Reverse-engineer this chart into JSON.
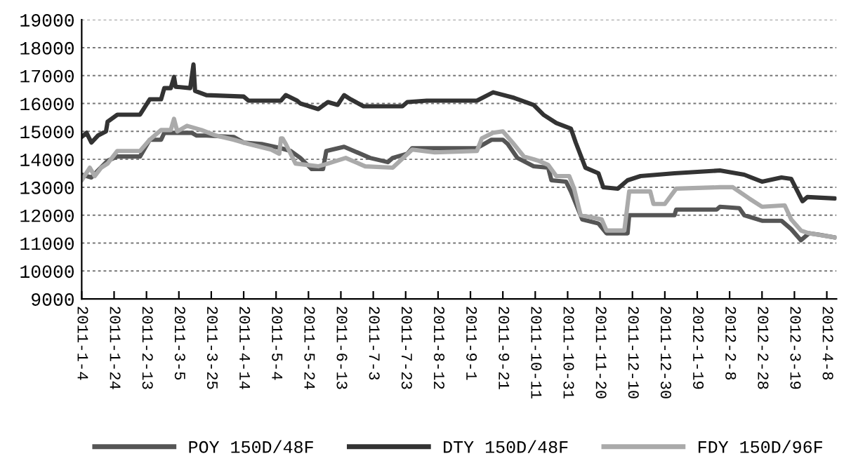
{
  "chart_data": {
    "type": "line",
    "ylim": [
      9000,
      19000
    ],
    "yticks": [
      9000,
      10000,
      11000,
      12000,
      13000,
      14000,
      15000,
      16000,
      17000,
      18000,
      19000
    ],
    "xlim": [
      "2011-01-04",
      "2012-04-14"
    ],
    "xticks": [
      {
        "value": "2011-01-04",
        "label": "2011-1-4"
      },
      {
        "value": "2011-01-24",
        "label": "2011-1-24"
      },
      {
        "value": "2011-02-13",
        "label": "2011-2-13"
      },
      {
        "value": "2011-03-05",
        "label": "2011-3-5"
      },
      {
        "value": "2011-03-25",
        "label": "2011-3-25"
      },
      {
        "value": "2011-04-14",
        "label": "2011-4-14"
      },
      {
        "value": "2011-05-04",
        "label": "2011-5-4"
      },
      {
        "value": "2011-05-24",
        "label": "2011-5-24"
      },
      {
        "value": "2011-06-13",
        "label": "2011-6-13"
      },
      {
        "value": "2011-07-03",
        "label": "2011-7-3"
      },
      {
        "value": "2011-07-23",
        "label": "2011-7-23"
      },
      {
        "value": "2011-08-12",
        "label": "2011-8-12"
      },
      {
        "value": "2011-09-01",
        "label": "2011-9-1"
      },
      {
        "value": "2011-09-21",
        "label": "2011-9-21"
      },
      {
        "value": "2011-10-11",
        "label": "2011-10-11"
      },
      {
        "value": "2011-10-31",
        "label": "2011-10-31"
      },
      {
        "value": "2011-11-20",
        "label": "2011-11-20"
      },
      {
        "value": "2011-12-10",
        "label": "2011-12-10"
      },
      {
        "value": "2011-12-30",
        "label": "2011-12-30"
      },
      {
        "value": "2012-01-19",
        "label": "2012-1-19"
      },
      {
        "value": "2012-02-08",
        "label": "2012-2-8"
      },
      {
        "value": "2012-02-28",
        "label": "2012-2-28"
      },
      {
        "value": "2012-03-19",
        "label": "2012-3-19"
      },
      {
        "value": "2012-04-08",
        "label": "2012-4-8"
      }
    ],
    "grid": "y",
    "legend": "bottom",
    "marker": "none",
    "line_style": "solid",
    "series": [
      {
        "name": "POY 150D/48F",
        "color": "#555555",
        "x": [
          "2011-01-04",
          "2011-01-10",
          "2011-01-14",
          "2011-01-20",
          "2011-01-26",
          "2011-02-09",
          "2011-02-15",
          "2011-02-22",
          "2011-02-24",
          "2011-03-13",
          "2011-03-16",
          "2011-03-22",
          "2011-04-08",
          "2011-04-14",
          "2011-04-25",
          "2011-05-07",
          "2011-05-13",
          "2011-05-19",
          "2011-05-26",
          "2011-06-02",
          "2011-06-04",
          "2011-06-15",
          "2011-06-25",
          "2011-07-01",
          "2011-07-12",
          "2011-07-15",
          "2011-07-24",
          "2011-07-27",
          "2011-08-10",
          "2011-09-05",
          "2011-09-14",
          "2011-09-21",
          "2011-09-24",
          "2011-09-30",
          "2011-10-10",
          "2011-10-19",
          "2011-10-21",
          "2011-10-30",
          "2011-11-02",
          "2011-11-09",
          "2011-11-19",
          "2011-11-24",
          "2011-12-07",
          "2011-12-08",
          "2012-01-05",
          "2012-01-06",
          "2012-01-31",
          "2012-02-02",
          "2012-02-14",
          "2012-02-17",
          "2012-02-28",
          "2012-03-11",
          "2012-03-17",
          "2012-03-23",
          "2012-03-28",
          "2012-04-03",
          "2012-04-13"
        ],
        "values": [
          13450,
          13350,
          13600,
          13950,
          14100,
          14100,
          14700,
          14700,
          14950,
          14950,
          14850,
          14850,
          14800,
          14600,
          14550,
          14400,
          14300,
          14050,
          13650,
          13650,
          14300,
          14450,
          14200,
          14050,
          13900,
          14050,
          14200,
          14400,
          14400,
          14400,
          14700,
          14700,
          14550,
          14050,
          13750,
          13700,
          13250,
          13200,
          12850,
          11850,
          11700,
          11350,
          11350,
          12000,
          12000,
          12200,
          12200,
          12300,
          12250,
          12000,
          11800,
          11800,
          11500,
          11100,
          11350,
          11300,
          11200
        ]
      },
      {
        "name": "DTY 150D/48F",
        "color": "#333333",
        "x": [
          "2011-01-04",
          "2011-01-07",
          "2011-01-10",
          "2011-01-14",
          "2011-01-19",
          "2011-01-20",
          "2011-01-26",
          "2011-02-09",
          "2011-02-15",
          "2011-02-22",
          "2011-02-24",
          "2011-02-28",
          "2011-03-02",
          "2011-03-03",
          "2011-03-12",
          "2011-03-14",
          "2011-03-15",
          "2011-03-22",
          "2011-04-14",
          "2011-04-17",
          "2011-05-07",
          "2011-05-10",
          "2011-05-17",
          "2011-05-19",
          "2011-05-30",
          "2011-06-05",
          "2011-06-11",
          "2011-06-15",
          "2011-06-19",
          "2011-06-27",
          "2011-07-21",
          "2011-07-24",
          "2011-08-05",
          "2011-08-10",
          "2011-09-05",
          "2011-09-15",
          "2011-09-28",
          "2011-10-10",
          "2011-10-16",
          "2011-10-24",
          "2011-11-02",
          "2011-11-05",
          "2011-11-11",
          "2011-11-19",
          "2011-11-22",
          "2011-12-01",
          "2011-12-07",
          "2011-12-15",
          "2012-01-05",
          "2012-02-02",
          "2012-02-17",
          "2012-02-28",
          "2012-03-11",
          "2012-03-17",
          "2012-03-24",
          "2012-03-27",
          "2012-04-13"
        ],
        "values": [
          14800,
          14950,
          14600,
          14850,
          15000,
          15350,
          15600,
          15600,
          16150,
          16150,
          16550,
          16550,
          16950,
          16600,
          16550,
          17400,
          16450,
          16300,
          16250,
          16100,
          16100,
          16300,
          16100,
          16000,
          15800,
          16050,
          15950,
          16300,
          16150,
          15900,
          15900,
          16050,
          16100,
          16100,
          16100,
          16400,
          16200,
          15950,
          15600,
          15300,
          15100,
          14600,
          13700,
          13500,
          13000,
          12950,
          13250,
          13400,
          13500,
          13600,
          13450,
          13200,
          13350,
          13300,
          12500,
          12650,
          12600
        ]
      },
      {
        "name": "FDY 150D/96F",
        "color": "#aaaaaa",
        "x": [
          "2011-01-04",
          "2011-01-09",
          "2011-01-12",
          "2011-01-16",
          "2011-01-20",
          "2011-01-26",
          "2011-02-09",
          "2011-02-15",
          "2011-02-22",
          "2011-02-28",
          "2011-03-02",
          "2011-03-04",
          "2011-03-10",
          "2011-03-19",
          "2011-03-28",
          "2011-04-08",
          "2011-04-17",
          "2011-05-01",
          "2011-05-06",
          "2011-05-07",
          "2011-05-08",
          "2011-05-10",
          "2011-05-16",
          "2011-05-30",
          "2011-06-05",
          "2011-06-16",
          "2011-06-28",
          "2011-07-15",
          "2011-07-27",
          "2011-08-10",
          "2011-09-05",
          "2011-09-08",
          "2011-09-15",
          "2011-09-21",
          "2011-09-27",
          "2011-10-04",
          "2011-10-13",
          "2011-10-19",
          "2011-10-24",
          "2011-11-01",
          "2011-11-04",
          "2011-11-08",
          "2011-11-21",
          "2011-11-24",
          "2011-12-05",
          "2011-12-08",
          "2011-12-21",
          "2011-12-23",
          "2011-12-30",
          "2012-01-06",
          "2012-02-02",
          "2012-02-10",
          "2012-02-20",
          "2012-02-28",
          "2012-03-13",
          "2012-03-17",
          "2012-03-23",
          "2012-03-28",
          "2012-04-13"
        ],
        "values": [
          13250,
          13700,
          13400,
          13700,
          13850,
          14300,
          14300,
          14700,
          15050,
          15050,
          15450,
          15000,
          15200,
          15050,
          14850,
          14700,
          14550,
          14350,
          14200,
          14750,
          14750,
          14550,
          13850,
          13750,
          13850,
          14050,
          13750,
          13700,
          14350,
          14250,
          14300,
          14750,
          14950,
          15000,
          14600,
          14100,
          13950,
          13800,
          13400,
          13400,
          12950,
          12000,
          11850,
          11450,
          11450,
          12850,
          12850,
          12400,
          12400,
          12950,
          13000,
          13000,
          12600,
          12300,
          12350,
          11850,
          11450,
          11350,
          11200
        ]
      }
    ]
  }
}
